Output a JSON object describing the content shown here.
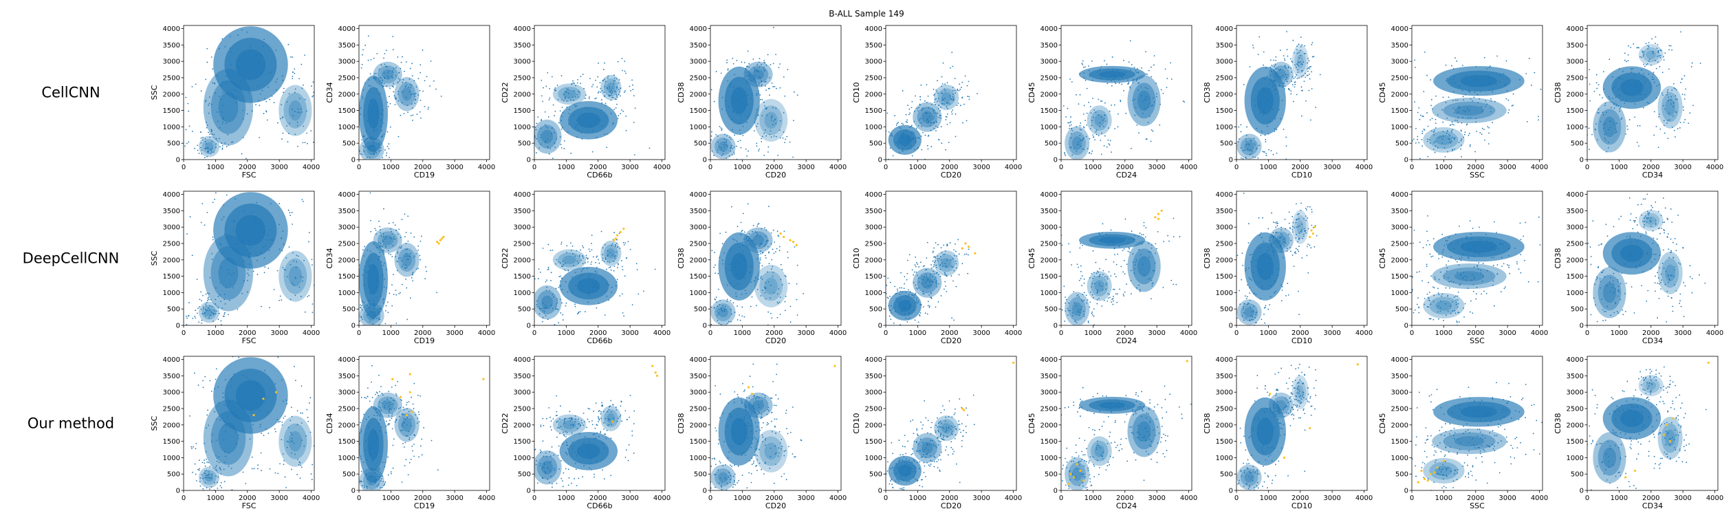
{
  "figure": {
    "title": "B-ALL Sample 149",
    "rows": [
      "CellCNN",
      "DeepCellCNN",
      "Our method"
    ]
  },
  "colors": {
    "main": "#1f77b4",
    "highlight": "#ffbf1f"
  },
  "chart_data": {
    "type": "scatter",
    "title": "B-ALL Sample 149",
    "xlim": [
      0,
      4096
    ],
    "ylim": [
      0,
      4096
    ],
    "ticks": [
      0,
      500,
      1000,
      1500,
      2000,
      2500,
      3000,
      3500,
      4000
    ],
    "x_ticks": [
      0,
      1000,
      2000,
      3000,
      4000
    ],
    "legend": "none",
    "grid": false,
    "panels": [
      {
        "x": "FSC",
        "y": "SSC"
      },
      {
        "x": "CD19",
        "y": "CD34"
      },
      {
        "x": "CD66b",
        "y": "CD22"
      },
      {
        "x": "CD20",
        "y": "CD38"
      },
      {
        "x": "CD20",
        "y": "CD10"
      },
      {
        "x": "CD24",
        "y": "CD45"
      },
      {
        "x": "CD10",
        "y": "CD38"
      },
      {
        "x": "SSC",
        "y": "CD45"
      },
      {
        "x": "CD34",
        "y": "CD38"
      }
    ],
    "highlighted_points": {
      "CellCNN": [],
      "DeepCellCNN": [
        [
          [],
          []
        ],
        [
          [
            2500,
            2500
          ],
          [
            2600,
            2650
          ],
          [
            2650,
            2700
          ],
          [
            2550,
            2600
          ],
          [
            2450,
            2550
          ]
        ],
        [
          [
            2500,
            2600
          ],
          [
            2600,
            2750
          ],
          [
            2700,
            2850
          ],
          [
            2800,
            2950
          ],
          [
            2550,
            2650
          ]
        ],
        [
          [
            2300,
            2700
          ],
          [
            2500,
            2600
          ],
          [
            2700,
            2450
          ],
          [
            2200,
            2800
          ],
          [
            2600,
            2550
          ]
        ],
        [
          [
            2400,
            2350
          ],
          [
            2600,
            2400
          ],
          [
            2800,
            2200
          ],
          [
            2500,
            2500
          ]
        ],
        [
          [
            2950,
            3300
          ],
          [
            3050,
            3400
          ],
          [
            3150,
            3500
          ],
          [
            3050,
            3250
          ]
        ],
        [
          [
            2350,
            2900
          ],
          [
            2400,
            2800
          ],
          [
            2450,
            3000
          ],
          [
            2300,
            2700
          ]
        ],
        [],
        []
      ],
      "Our method": [
        [
          [
            2500,
            2800
          ],
          [
            2900,
            3000
          ],
          [
            2200,
            2300
          ]
        ],
        [
          [
            1050,
            3400
          ],
          [
            1600,
            3550
          ],
          [
            1500,
            2300
          ],
          [
            1650,
            2400
          ],
          [
            1300,
            2850
          ],
          [
            3900,
            3400
          ],
          [
            1600,
            3000
          ]
        ],
        [
          [
            3800,
            3600
          ],
          [
            3850,
            3500
          ],
          [
            2450,
            2100
          ],
          [
            3700,
            3800
          ]
        ],
        [
          [
            3900,
            3800
          ],
          [
            1200,
            3150
          ],
          [
            1300,
            2950
          ]
        ],
        [
          [
            4000,
            3900
          ],
          [
            2400,
            2500
          ],
          [
            2450,
            2450
          ]
        ],
        [
          [
            250,
            200
          ],
          [
            400,
            400
          ],
          [
            600,
            600
          ],
          [
            700,
            300
          ],
          [
            500,
            800
          ],
          [
            300,
            500
          ],
          [
            3950,
            3950
          ]
        ],
        [
          [
            1050,
            2950
          ],
          [
            1500,
            1000
          ],
          [
            2300,
            1900
          ],
          [
            3800,
            3850
          ]
        ],
        [
          [
            200,
            250
          ],
          [
            400,
            350
          ],
          [
            600,
            500
          ],
          [
            800,
            700
          ],
          [
            300,
            600
          ],
          [
            500,
            300
          ],
          [
            700,
            550
          ],
          [
            1000,
            900
          ]
        ],
        [
          [
            2400,
            1700
          ],
          [
            2500,
            2000
          ],
          [
            2600,
            1500
          ],
          [
            2700,
            2200
          ],
          [
            3800,
            3900
          ],
          [
            1500,
            600
          ],
          [
            1200,
            400
          ]
        ]
      ]
    }
  }
}
